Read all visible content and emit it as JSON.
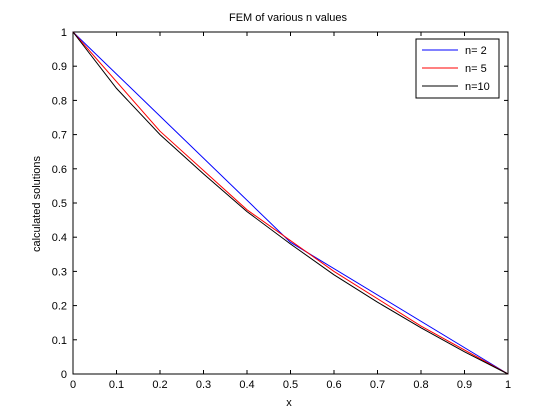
{
  "chart_data": {
    "type": "line",
    "title": "FEM of various n values",
    "xlabel": "x",
    "ylabel": "calculated solutions",
    "xlim": [
      0,
      1
    ],
    "ylim": [
      0,
      1
    ],
    "xticks": [
      "0",
      "0.1",
      "0.2",
      "0.3",
      "0.4",
      "0.5",
      "0.6",
      "0.7",
      "0.8",
      "0.9",
      "1"
    ],
    "yticks": [
      "0",
      "0.1",
      "0.2",
      "0.3",
      "0.4",
      "0.5",
      "0.6",
      "0.7",
      "0.8",
      "0.9",
      "1"
    ],
    "grid": false,
    "legend_position": "top-right",
    "series": [
      {
        "name": "n= 2",
        "color": "#0000ff",
        "x": [
          0,
          0.5,
          1
        ],
        "y": [
          1,
          0.385,
          0
        ]
      },
      {
        "name": "n= 5",
        "color": "#ff0000",
        "x": [
          0,
          0.2,
          0.4,
          0.6,
          0.8,
          1
        ],
        "y": [
          1,
          0.71,
          0.48,
          0.3,
          0.14,
          0
        ]
      },
      {
        "name": "n=10",
        "color": "#000000",
        "x": [
          0,
          0.1,
          0.2,
          0.3,
          0.4,
          0.5,
          0.6,
          0.7,
          0.8,
          0.9,
          1
        ],
        "y": [
          1,
          0.835,
          0.7,
          0.585,
          0.475,
          0.38,
          0.29,
          0.21,
          0.135,
          0.065,
          0
        ]
      }
    ]
  }
}
